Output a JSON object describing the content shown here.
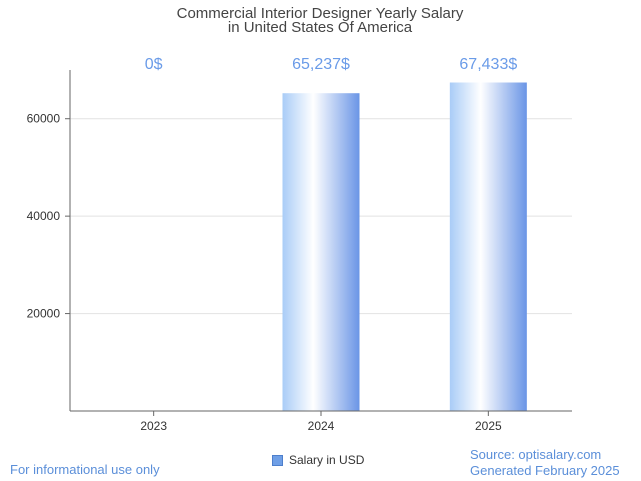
{
  "chart_data": {
    "type": "bar",
    "title": [
      "Commercial Interior Designer Yearly Salary",
      "in United States Of America"
    ],
    "categories": [
      "2023",
      "2024",
      "2025"
    ],
    "series": [
      {
        "name": "Salary in USD",
        "values": [
          0,
          65237,
          67433
        ],
        "data_labels": [
          "0$",
          "65,237$",
          "67,433$"
        ]
      }
    ],
    "yticks": [
      20000,
      40000,
      60000
    ],
    "ylim": [
      0,
      70000
    ],
    "xlabel": "",
    "ylabel": "",
    "grid": true,
    "legend_position": "bottom",
    "colors": {
      "bar_light": "#ffffff",
      "bar_mid": "#a9ccf7",
      "bar_dark": "#6a95e6",
      "label": "#6a9be8"
    }
  },
  "footer": {
    "disclaimer": "For informational use only",
    "source": "Source: optisalary.com",
    "generated": "Generated February 2025"
  }
}
